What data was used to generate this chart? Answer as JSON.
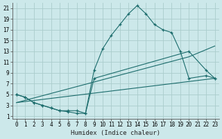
{
  "bg_color": "#cce8ea",
  "grid_color": "#aacccc",
  "line_color": "#1a6b6b",
  "xlabel": "Humidex (Indice chaleur)",
  "xlim": [
    -0.5,
    23.5
  ],
  "ylim": [
    0.5,
    22
  ],
  "xticks": [
    0,
    1,
    2,
    3,
    4,
    5,
    6,
    7,
    8,
    9,
    10,
    11,
    12,
    13,
    14,
    15,
    16,
    17,
    18,
    19,
    20,
    21,
    22,
    23
  ],
  "yticks": [
    1,
    3,
    5,
    7,
    9,
    11,
    13,
    15,
    17,
    19,
    21
  ],
  "curve1_x": [
    0,
    1,
    2,
    3,
    4,
    5,
    6,
    7,
    8,
    9,
    10,
    11,
    12,
    13,
    14,
    15,
    16,
    17,
    18,
    19,
    20,
    22,
    23
  ],
  "curve1_y": [
    5,
    4.5,
    3.5,
    3,
    2.5,
    2,
    1.8,
    1.5,
    1.5,
    9.5,
    13.5,
    16,
    18,
    20,
    21.5,
    20,
    18,
    17,
    16.5,
    13,
    8,
    8.5,
    8
  ],
  "curve2_x": [
    0,
    1,
    2,
    3,
    4,
    5,
    6,
    7,
    8,
    9,
    20,
    22,
    23
  ],
  "curve2_y": [
    5,
    4.5,
    3.5,
    3,
    2.5,
    2,
    2,
    2,
    1.5,
    8,
    13,
    9.5,
    8
  ],
  "line3_x": [
    0,
    20,
    23
  ],
  "line3_y": [
    3.5,
    12,
    14
  ],
  "line4_x": [
    0,
    23
  ],
  "line4_y": [
    3.5,
    8
  ]
}
